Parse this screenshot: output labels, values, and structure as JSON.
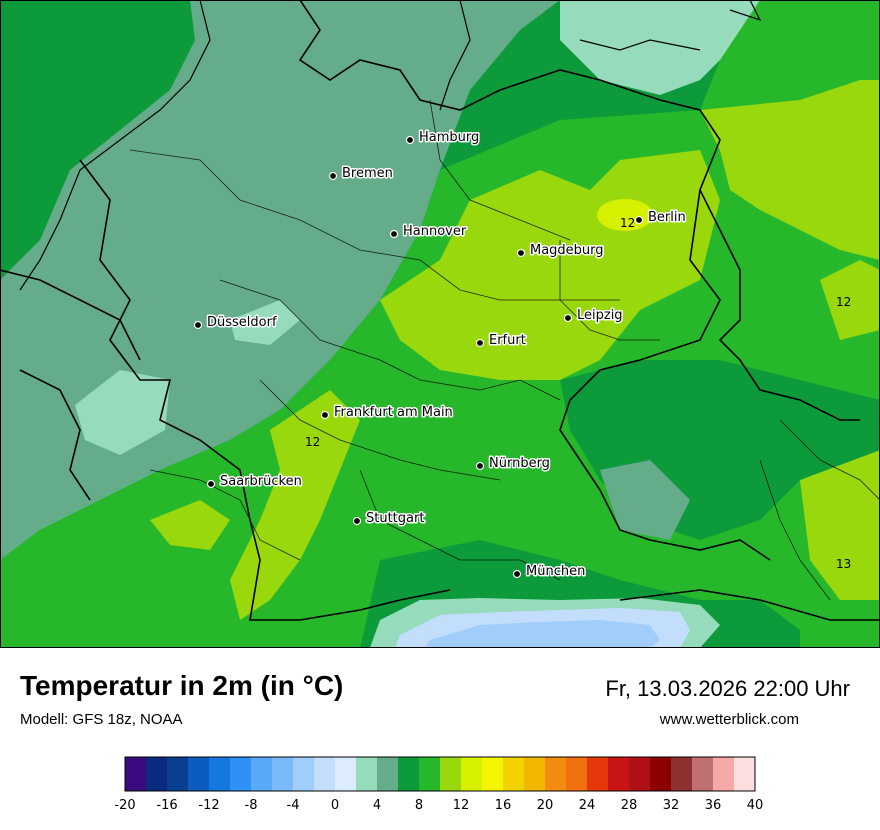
{
  "title": "Temperatur in 2m (in °C)",
  "model": "Modell: GFS 18z, NOAA",
  "datetime": "Fr, 13.03.2026 22:00 Uhr",
  "website": "www.wetterblick.com",
  "cities": [
    {
      "name": "Hamburg"
    },
    {
      "name": "Bremen"
    },
    {
      "name": "Hannover"
    },
    {
      "name": "Berlin"
    },
    {
      "name": "Magdeburg"
    },
    {
      "name": "Leipzig"
    },
    {
      "name": "Düsseldorf"
    },
    {
      "name": "Erfurt"
    },
    {
      "name": "Frankfurt am Main"
    },
    {
      "name": "Nürnberg"
    },
    {
      "name": "Saarbrücken"
    },
    {
      "name": "Stuttgart"
    },
    {
      "name": "München"
    }
  ],
  "isolines": [
    "12",
    "12",
    "12",
    "13"
  ],
  "legend": {
    "ticks": [
      "-20",
      "-16",
      "-12",
      "-8",
      "-4",
      "0",
      "4",
      "8",
      "12",
      "16",
      "20",
      "24",
      "28",
      "32",
      "36",
      "40"
    ],
    "colors": [
      "#3a0a80",
      "#0a2a80",
      "#0a3f8f",
      "#0c5cc0",
      "#1577e0",
      "#2f91f5",
      "#5aa8f8",
      "#7bbaf9",
      "#a0cdfa",
      "#c2defc",
      "#dcebfd",
      "#96dcbc",
      "#64ac8a",
      "#0c9a3a",
      "#26b82a",
      "#9ad80e",
      "#d6f000",
      "#f4f500",
      "#f2d300",
      "#f2b800",
      "#f28c10",
      "#f07010",
      "#e6360a",
      "#c81414",
      "#b01018",
      "#8c0000",
      "#8c3030",
      "#c07070",
      "#f4a8a8",
      "#fcdede"
    ]
  }
}
